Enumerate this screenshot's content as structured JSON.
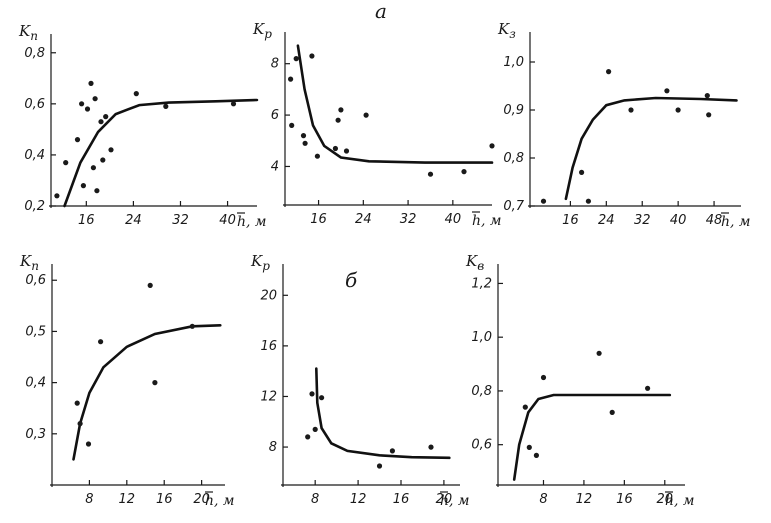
{
  "panel_labels": {
    "top": "а",
    "bottom": "б"
  },
  "chart_data": [
    {
      "id": "a1",
      "type": "scatter",
      "ylabel_main": "K",
      "ylabel_sub": "п",
      "xlabel_main": "h",
      "xlabel_rest": ", м",
      "xlim": [
        10,
        45
      ],
      "ylim": [
        0.2,
        0.85
      ],
      "xticks": [
        16,
        24,
        32,
        40
      ],
      "yticks": [
        0.2,
        0.4,
        0.6,
        0.8
      ],
      "xtick_labels": [
        "16",
        "24",
        "32",
        "40"
      ],
      "ytick_labels": [
        "0,2",
        "0,4",
        "0,6",
        "0,8"
      ],
      "points": [
        [
          11.0,
          0.24
        ],
        [
          12.5,
          0.37
        ],
        [
          14.5,
          0.46
        ],
        [
          15.2,
          0.6
        ],
        [
          15.5,
          0.28
        ],
        [
          16.2,
          0.58
        ],
        [
          16.8,
          0.68
        ],
        [
          17.2,
          0.35
        ],
        [
          17.5,
          0.62
        ],
        [
          17.8,
          0.26
        ],
        [
          18.5,
          0.53
        ],
        [
          18.8,
          0.38
        ],
        [
          19.3,
          0.55
        ],
        [
          20.2,
          0.42
        ],
        [
          24.5,
          0.64
        ],
        [
          29.5,
          0.59
        ],
        [
          41,
          0.6
        ]
      ],
      "curve": [
        [
          12.3,
          0.2
        ],
        [
          15,
          0.37
        ],
        [
          18,
          0.49
        ],
        [
          21,
          0.56
        ],
        [
          25,
          0.595
        ],
        [
          30,
          0.605
        ],
        [
          38,
          0.61
        ],
        [
          45,
          0.615
        ]
      ]
    },
    {
      "id": "a2",
      "type": "scatter",
      "ylabel_main": "K",
      "ylabel_sub": "р",
      "xlabel_main": "h",
      "xlabel_rest": ", м",
      "xlim": [
        10,
        47
      ],
      "ylim": [
        2.5,
        9
      ],
      "xticks": [
        16,
        24,
        32,
        40
      ],
      "yticks": [
        4,
        6,
        8
      ],
      "xtick_labels": [
        "16",
        "24",
        "32",
        "40"
      ],
      "ytick_labels": [
        "4",
        "6",
        "8"
      ],
      "points": [
        [
          11,
          7.4
        ],
        [
          11.2,
          5.6
        ],
        [
          12,
          8.2
        ],
        [
          13.3,
          5.2
        ],
        [
          13.6,
          4.9
        ],
        [
          14.8,
          8.3
        ],
        [
          15.8,
          4.4
        ],
        [
          19,
          4.7
        ],
        [
          19.5,
          5.8
        ],
        [
          20,
          6.2
        ],
        [
          21,
          4.6
        ],
        [
          24.5,
          6.0
        ],
        [
          36,
          3.7
        ],
        [
          42,
          3.8
        ],
        [
          47,
          4.8
        ]
      ],
      "curve": [
        [
          12.3,
          8.7
        ],
        [
          13.5,
          7.0
        ],
        [
          15,
          5.6
        ],
        [
          17,
          4.8
        ],
        [
          20,
          4.35
        ],
        [
          25,
          4.2
        ],
        [
          35,
          4.15
        ],
        [
          47,
          4.15
        ]
      ]
    },
    {
      "id": "a3",
      "type": "scatter",
      "ylabel_main": "K",
      "ylabel_sub": "з",
      "xlabel_main": "h",
      "xlabel_rest": ", м",
      "xlim": [
        7,
        54
      ],
      "ylim": [
        0.7,
        1.05
      ],
      "xticks": [
        16,
        24,
        32,
        40,
        48
      ],
      "yticks": [
        0.7,
        0.8,
        0.9,
        1.0
      ],
      "xtick_labels": [
        "16",
        "24",
        "32",
        "40",
        "48"
      ],
      "ytick_labels": [
        "0,7",
        "0,8",
        "0,9",
        "1,0"
      ],
      "points": [
        [
          10,
          0.71
        ],
        [
          18.5,
          0.77
        ],
        [
          20,
          0.71
        ],
        [
          24.5,
          0.98
        ],
        [
          29.5,
          0.9
        ],
        [
          37.5,
          0.94
        ],
        [
          40,
          0.9
        ],
        [
          46.5,
          0.93
        ],
        [
          46.8,
          0.89
        ]
      ],
      "curve": [
        [
          15,
          0.715
        ],
        [
          16.5,
          0.78
        ],
        [
          18.5,
          0.84
        ],
        [
          21,
          0.88
        ],
        [
          24,
          0.91
        ],
        [
          28,
          0.92
        ],
        [
          35,
          0.925
        ],
        [
          45,
          0.923
        ],
        [
          53,
          0.92
        ]
      ]
    },
    {
      "id": "b1",
      "type": "scatter",
      "ylabel_main": "K",
      "ylabel_sub": "п",
      "xlabel_main": "h",
      "xlabel_rest": ", м",
      "xlim": [
        4,
        22.5
      ],
      "ylim": [
        0.2,
        0.62
      ],
      "xticks": [
        8,
        12,
        16,
        20
      ],
      "yticks": [
        0.3,
        0.4,
        0.5,
        0.6
      ],
      "xtick_labels": [
        "8",
        "12",
        "16",
        "20"
      ],
      "ytick_labels": [
        "0,3",
        "0,4",
        "0,5",
        "0,6"
      ],
      "points": [
        [
          6.7,
          0.36
        ],
        [
          7.0,
          0.32
        ],
        [
          7.9,
          0.28
        ],
        [
          9.2,
          0.48
        ],
        [
          14.5,
          0.59
        ],
        [
          15,
          0.4
        ],
        [
          19,
          0.51
        ]
      ],
      "curve": [
        [
          6.3,
          0.25
        ],
        [
          7,
          0.32
        ],
        [
          8,
          0.38
        ],
        [
          9.5,
          0.43
        ],
        [
          12,
          0.47
        ],
        [
          15,
          0.495
        ],
        [
          19,
          0.51
        ],
        [
          22,
          0.512
        ]
      ]
    },
    {
      "id": "b2",
      "type": "scatter",
      "ylabel_main": "K",
      "ylabel_sub": "р",
      "xlabel_main": "h",
      "xlabel_rest": ", м",
      "xlim": [
        5,
        21.5
      ],
      "ylim": [
        5,
        22
      ],
      "xticks": [
        8,
        12,
        16,
        20
      ],
      "yticks": [
        8,
        12,
        16,
        20
      ],
      "xtick_labels": [
        "8",
        "12",
        "16",
        "20"
      ],
      "ytick_labels": [
        "8",
        "12",
        "16",
        "20"
      ],
      "points": [
        [
          7.3,
          8.8
        ],
        [
          7.7,
          12.2
        ],
        [
          8,
          9.4
        ],
        [
          8.6,
          11.9
        ],
        [
          14,
          6.5
        ],
        [
          15.2,
          7.7
        ],
        [
          18.8,
          8.0
        ]
      ],
      "curve": [
        [
          8.1,
          14.2
        ],
        [
          8.2,
          11.5
        ],
        [
          8.6,
          9.5
        ],
        [
          9.5,
          8.3
        ],
        [
          11,
          7.7
        ],
        [
          14,
          7.35
        ],
        [
          17,
          7.2
        ],
        [
          20.5,
          7.15
        ]
      ]
    },
    {
      "id": "b3",
      "type": "scatter",
      "ylabel_main": "K",
      "ylabel_sub": "в",
      "xlabel_main": "h",
      "xlabel_rest": ", м",
      "xlim": [
        3.5,
        22
      ],
      "ylim": [
        0.45,
        1.25
      ],
      "xticks": [
        8,
        12,
        16,
        20
      ],
      "yticks": [
        0.6,
        0.8,
        1.0,
        1.2
      ],
      "xtick_labels": [
        "8",
        "12",
        "16",
        "20"
      ],
      "ytick_labels": [
        "0,6",
        "0,8",
        "1,0",
        "1,2"
      ],
      "points": [
        [
          6.2,
          0.74
        ],
        [
          6.6,
          0.59
        ],
        [
          7.3,
          0.56
        ],
        [
          8,
          0.85
        ],
        [
          13.5,
          0.94
        ],
        [
          14.8,
          0.72
        ],
        [
          18.3,
          0.81
        ]
      ],
      "curve": [
        [
          5.1,
          0.47
        ],
        [
          5.6,
          0.6
        ],
        [
          6.5,
          0.72
        ],
        [
          7.5,
          0.77
        ],
        [
          9,
          0.785
        ],
        [
          13,
          0.785
        ],
        [
          20.5,
          0.785
        ]
      ]
    }
  ]
}
